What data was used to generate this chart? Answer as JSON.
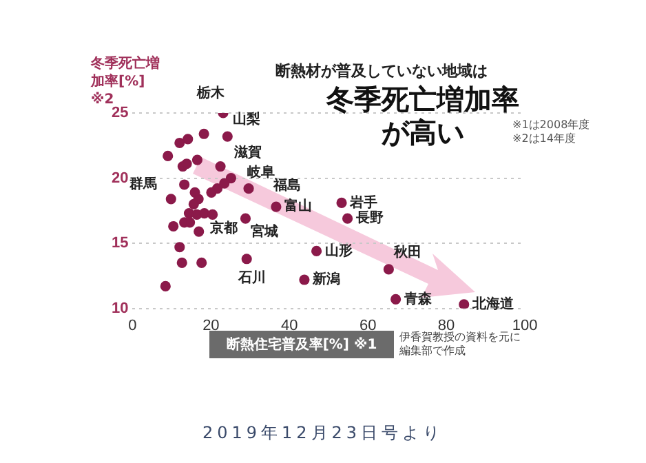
{
  "chart_data": {
    "type": "scatter",
    "title": "冬季死亡増加率が高い",
    "subtitle": "断熱材が普及していない地域は",
    "xlabel": "断熱住宅普及率[%] ※1",
    "ylabel": "冬季死亡増加率[%] ※2",
    "annotations": [
      "※1は2008年度",
      "※2は14年度",
      "伊香賀教授の資料を元に編集部で作成",
      "2019年12月23日号より"
    ],
    "x": [
      23.1,
      18.2,
      24.2,
      14.1,
      12.0,
      9.0,
      16.5,
      12.8,
      13.8,
      22.4,
      25.1,
      23.4,
      21.6,
      20.1,
      13.2,
      9.8,
      15.9,
      16.8,
      15.6,
      14.4,
      16.4,
      18.3,
      20.4,
      13.2,
      14.6,
      10.4,
      16.9,
      29.6,
      28.8,
      36.6,
      12.0,
      12.6,
      17.6,
      29.1,
      8.4,
      43.8,
      46.9,
      53.3,
      54.8,
      65.3,
      67.1,
      84.5
    ],
    "values": [
      25.0,
      23.4,
      23.2,
      23.0,
      22.7,
      21.7,
      21.4,
      20.9,
      21.1,
      20.9,
      20.0,
      19.6,
      19.2,
      18.9,
      19.5,
      18.4,
      18.9,
      18.4,
      18.0,
      17.3,
      17.2,
      17.3,
      17.2,
      16.6,
      16.6,
      16.3,
      15.9,
      19.2,
      16.9,
      17.8,
      14.7,
      13.5,
      13.5,
      13.8,
      11.7,
      12.2,
      14.4,
      18.1,
      16.9,
      13.0,
      10.7,
      10.3
    ],
    "value_labels": [
      "栃木",
      null,
      "山梨",
      null,
      null,
      null,
      null,
      null,
      null,
      "滋賀",
      "岐阜",
      null,
      null,
      null,
      "群馬",
      null,
      null,
      null,
      null,
      null,
      null,
      null,
      "京都",
      null,
      null,
      null,
      null,
      "福島",
      "宮城",
      "富山",
      null,
      null,
      null,
      "石川",
      null,
      "新潟",
      "山形",
      "岩手",
      "長野",
      "秋田",
      "青森",
      "北海道"
    ],
    "color": "#8b1a4a",
    "marker": "circle",
    "grid": "y",
    "xlim": [
      0,
      100
    ],
    "ylim": [
      10,
      25
    ],
    "xticks": [
      0,
      20,
      40,
      60,
      80,
      100
    ],
    "yticks": [
      10,
      15,
      20,
      25
    ]
  }
}
